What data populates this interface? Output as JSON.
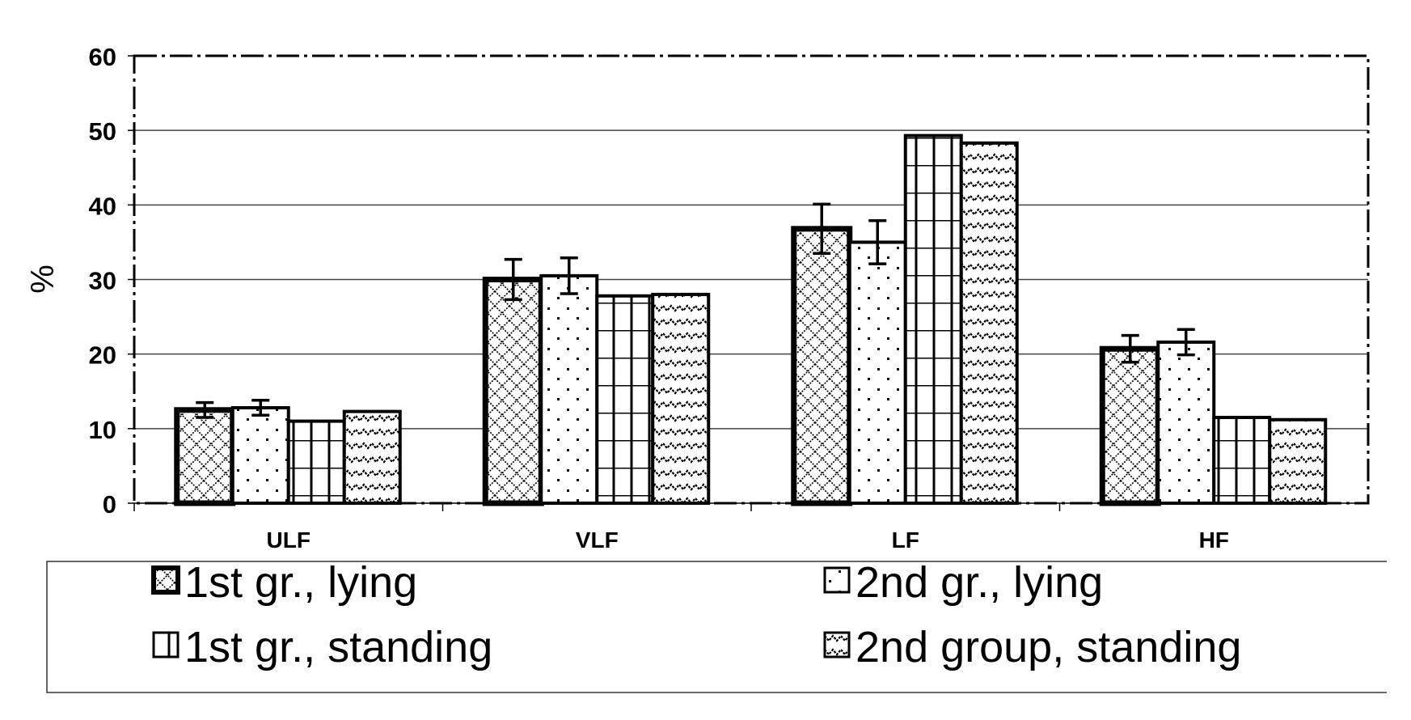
{
  "chart_data": {
    "type": "bar",
    "title": "",
    "xlabel": "",
    "ylabel": "%",
    "ylim": [
      0,
      60
    ],
    "yticks": [
      0,
      10,
      20,
      30,
      40,
      50,
      60
    ],
    "grid": true,
    "legend_position": "bottom",
    "categories": [
      "ULF",
      "VLF",
      "LF",
      "HF"
    ],
    "series": [
      {
        "name": "1st gr., lying",
        "pattern": "crosshatch",
        "values": [
          12.5,
          30.0,
          36.8,
          20.7
        ],
        "errors": [
          1.0,
          2.7,
          3.3,
          1.8
        ]
      },
      {
        "name": "2nd gr., lying",
        "pattern": "dots",
        "values": [
          12.8,
          30.5,
          35.0,
          21.6
        ],
        "errors": [
          1.0,
          2.4,
          2.9,
          1.7
        ]
      },
      {
        "name": "1st gr., standing",
        "pattern": "grid",
        "values": [
          11.0,
          27.8,
          49.3,
          11.5
        ],
        "errors": null
      },
      {
        "name": "2nd group, standing",
        "pattern": "zigzag",
        "values": [
          12.3,
          28.0,
          48.3,
          11.2
        ],
        "errors": null
      }
    ]
  }
}
